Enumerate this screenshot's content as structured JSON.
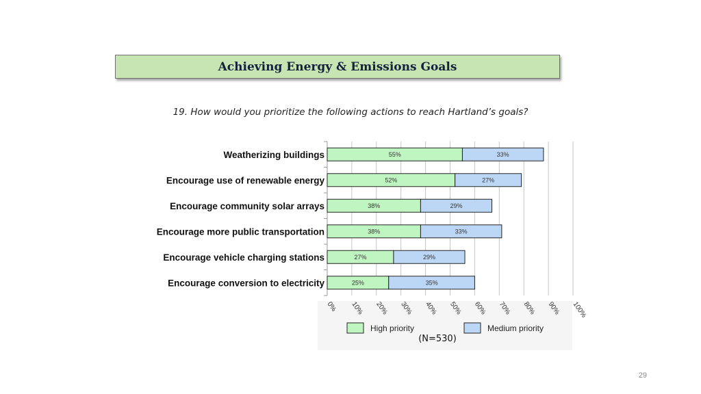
{
  "header": {
    "title": "Achieving Energy & Emissions Goals"
  },
  "question": "19. How would you prioritize the following actions to reach Hartland’s goals?",
  "footer": {
    "n_label": "(N=530)",
    "page_number": "29"
  },
  "colors": {
    "high": "#bff5c0",
    "medium": "#bcd7f6",
    "banner": "#c6e5b3"
  },
  "chart_data": {
    "type": "bar",
    "orientation": "horizontal",
    "stacked": true,
    "categories": [
      "Weatherizing buildings",
      "Encourage use of renewable energy",
      "Encourage community solar arrays",
      "Encourage more public transportation",
      "Encourage vehicle charging stations",
      "Encourage conversion to electricity"
    ],
    "series": [
      {
        "name": "High priority",
        "values": [
          55,
          52,
          38,
          38,
          27,
          25
        ],
        "labels": [
          "55%",
          "52%",
          "38%",
          "38%",
          "27%",
          "25%"
        ],
        "color": "#bff5c0"
      },
      {
        "name": "Medium priority",
        "values": [
          33,
          27,
          29,
          33,
          29,
          35
        ],
        "labels": [
          "33%",
          "27%",
          "29%",
          "33%",
          "29%",
          "35%"
        ],
        "color": "#bcd7f6"
      }
    ],
    "xlim": [
      0,
      100
    ],
    "xticks": [
      "0%",
      "10%",
      "20%",
      "30%",
      "40%",
      "50%",
      "60%",
      "70%",
      "80%",
      "90%",
      "100%"
    ],
    "grid": true,
    "legend": "bottom"
  }
}
